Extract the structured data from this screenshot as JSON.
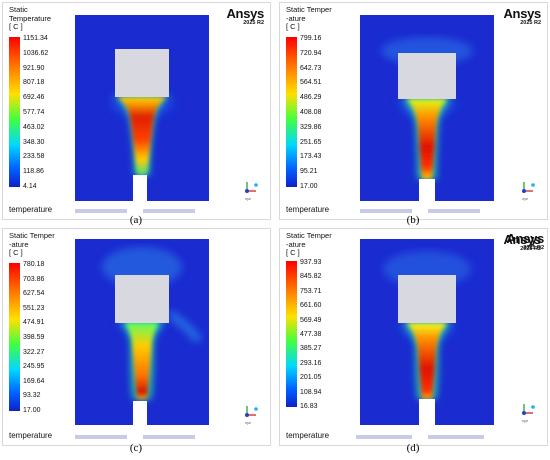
{
  "brand": {
    "name": "Ansys",
    "version": "2025 R2"
  },
  "colors": {
    "domain": "#1a2bd0",
    "legend_stops": [
      "#ff0000",
      "#ff8c00",
      "#ffff00",
      "#00ff40",
      "#00d0ff",
      "#0030ff"
    ]
  },
  "panels": [
    {
      "caption": "(a)",
      "title": "Static Temperature\n[ C ]",
      "legend": [
        "1151.34",
        "1036.62",
        "921.90",
        "807.18",
        "692.46",
        "577.74",
        "463.02",
        "348.30",
        "233.58",
        "118.86",
        "4.14"
      ],
      "variable_label": "temperature"
    },
    {
      "caption": "(b)",
      "title": "Static Temper\n-ature\n[ C ]",
      "legend": [
        "799.16",
        "720.94",
        "642.73",
        "564.51",
        "486.29",
        "408.08",
        "329.86",
        "251.65",
        "173.43",
        "95.21",
        "17.00"
      ],
      "variable_label": "temperature"
    },
    {
      "caption": "(c)",
      "title": "Static Temper\n-ature\n[ C ]",
      "legend": [
        "780.18",
        "703.86",
        "627.54",
        "551.23",
        "474.91",
        "398.59",
        "322.27",
        "245.95",
        "169.64",
        "93.32",
        "17.00"
      ],
      "variable_label": "temperature"
    },
    {
      "caption": "(d)",
      "title": "Static Temper\n-ature\n[ C ]",
      "legend": [
        "937.93",
        "845.82",
        "753.71",
        "661.60",
        "569.49",
        "477.38",
        "385.27",
        "293.16",
        "201.05",
        "108.94",
        "16.83"
      ],
      "variable_label": "temperature"
    }
  ]
}
